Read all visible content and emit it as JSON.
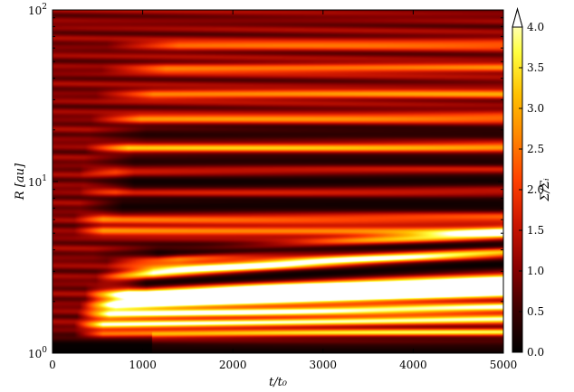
{
  "chart_data": {
    "type": "heatmap",
    "title": "",
    "xlabel": "t/t₀",
    "ylabel": "R [au]",
    "colorbar_label": "Σ/Σᵢ",
    "x_range": [
      0,
      5000
    ],
    "y_range": [
      1,
      100
    ],
    "y_scale": "log",
    "x_tick_labels": [
      "0",
      "1000",
      "2000",
      "3000",
      "4000",
      "5000"
    ],
    "x_ticks": [
      0,
      1000,
      2000,
      3000,
      4000,
      5000
    ],
    "y_ticks": [
      1,
      10,
      100
    ],
    "y_tick_labels": [
      {
        "base": "10",
        "exp": "0"
      },
      {
        "base": "10",
        "exp": "1"
      },
      {
        "base": "10",
        "exp": "2"
      }
    ],
    "colorbar_range": [
      0.0,
      4.0
    ],
    "colorbar_extend": "max",
    "colorbar_ticks": [
      0.0,
      0.5,
      1.0,
      1.5,
      2.0,
      2.5,
      3.0,
      3.5,
      4.0
    ],
    "colorbar_tick_labels": [
      "0.0",
      "0.5",
      "1.0",
      "1.5",
      "2.0",
      "2.5",
      "3.0",
      "3.5",
      "4.0"
    ],
    "colormap": "hot",
    "colormap_stops": [
      "#000000",
      "#3d0000",
      "#8b0000",
      "#cc1500",
      "#ff4000",
      "#ff8400",
      "#ffc000",
      "#ffff40",
      "#ffffff"
    ],
    "background_level": 0.95,
    "bands": [
      {
        "r_start": 3.15,
        "r_end": 4.9,
        "t_onset": 1000,
        "peak": 3.5,
        "width": 0.025
      },
      {
        "r_start": 2.6,
        "r_end": 3.95,
        "t_onset": 800,
        "peak": 4.0,
        "width": 0.025
      },
      {
        "r_start": 2.15,
        "r_end": 2.6,
        "t_onset": 600,
        "peak": 4.5,
        "width": 0.03
      },
      {
        "r_start": 1.85,
        "r_end": 2.25,
        "t_onset": 500,
        "peak": 3.6,
        "width": 0.02
      },
      {
        "r_start": 1.65,
        "r_end": 1.85,
        "t_onset": 450,
        "peak": 3.2,
        "width": 0.018
      },
      {
        "r_start": 1.45,
        "r_end": 1.58,
        "t_onset": 400,
        "peak": 3.0,
        "width": 0.016
      },
      {
        "r_start": 1.28,
        "r_end": 1.33,
        "t_onset": 400,
        "peak": 2.5,
        "width": 0.014
      },
      {
        "r_start": 15.5,
        "r_end": 15.9,
        "t_onset": 600,
        "peak": 2.3,
        "width": 0.02
      },
      {
        "r_start": 8.7,
        "r_end": 8.9,
        "t_onset": 500,
        "peak": 1.8,
        "width": 0.02
      },
      {
        "r_start": 6.1,
        "r_end": 6.2,
        "t_onset": 400,
        "peak": 1.7,
        "width": 0.02
      },
      {
        "r_start": 5.2,
        "r_end": 5.1,
        "t_onset": 400,
        "peak": 1.6,
        "width": 0.02
      },
      {
        "r_start": 11.4,
        "r_end": 11.6,
        "t_onset": 500,
        "peak": 1.8,
        "width": 0.02
      },
      {
        "r_start": 23.0,
        "r_end": 23.5,
        "t_onset": 700,
        "peak": 1.7,
        "width": 0.02
      },
      {
        "r_start": 32.0,
        "r_end": 32.5,
        "t_onset": 800,
        "peak": 1.6,
        "width": 0.02
      },
      {
        "r_start": 45.0,
        "r_end": 46.0,
        "t_onset": 900,
        "peak": 1.5,
        "width": 0.02
      },
      {
        "r_start": 62.0,
        "r_end": 63.0,
        "t_onset": 1000,
        "peak": 1.4,
        "width": 0.02
      }
    ],
    "gaps": [
      {
        "r_start": 2.35,
        "r_end": 3.3,
        "t_onset": 800,
        "depth": 0.9,
        "width": 0.03
      },
      {
        "r_start": 3.7,
        "r_end": 4.3,
        "t_onset": 900,
        "depth": 0.9,
        "width": 0.03
      },
      {
        "r_start": 9.8,
        "r_end": 10.2,
        "t_onset": 700,
        "depth": 0.85,
        "width": 0.045
      },
      {
        "r_start": 7.2,
        "r_end": 7.4,
        "t_onset": 600,
        "depth": 0.85,
        "width": 0.04
      },
      {
        "r_start": 13.2,
        "r_end": 13.4,
        "t_onset": 700,
        "depth": 0.7,
        "width": 0.035
      },
      {
        "r_start": 19.0,
        "r_end": 19.3,
        "t_onset": 800,
        "depth": 0.65,
        "width": 0.035
      },
      {
        "r_start": 1.0,
        "r_end": 1.0,
        "t_onset": 0,
        "depth": 0.9,
        "width": 0.05
      }
    ]
  }
}
